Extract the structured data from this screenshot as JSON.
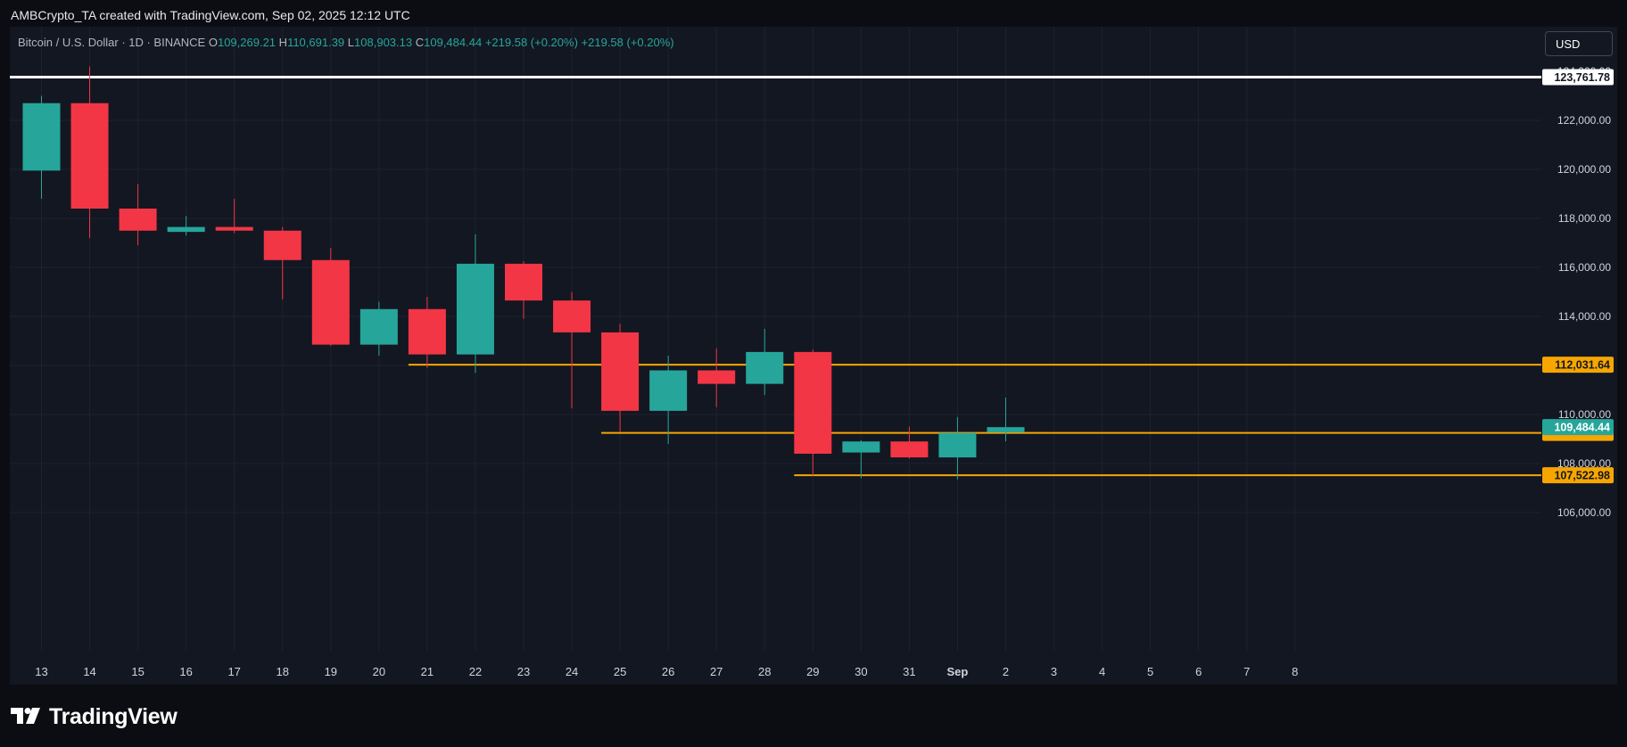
{
  "header": {
    "caption": "AMBCrypto_TA created with TradingView.com, Sep 02, 2025 12:12 UTC"
  },
  "symbol": {
    "name": "Bitcoin / U.S. Dollar · 1D · BINANCE",
    "open_label": "O",
    "open_value": "109,269.21",
    "high_label": "H",
    "high_value": "110,691.39",
    "low_label": "L",
    "low_value": "108,903.13",
    "close_label": "C",
    "close_value": "109,484.44",
    "change": "+219.58 (+0.20%)",
    "change_repeat": "+219.58 (+0.20%)"
  },
  "currency_button": "USD",
  "brand": {
    "name": "TradingView"
  },
  "colors": {
    "up": "#26a69a",
    "down": "#f23645",
    "level": "#f7a600",
    "resistance": "#ffffff",
    "background": "#131722",
    "grid": "#1e222d"
  },
  "chart_data": {
    "type": "candlestick",
    "title": "Bitcoin / U.S. Dollar · 1D · BINANCE",
    "x_ticks": [
      "13",
      "14",
      "15",
      "16",
      "17",
      "18",
      "19",
      "20",
      "21",
      "22",
      "23",
      "24",
      "25",
      "26",
      "27",
      "28",
      "29",
      "30",
      "31",
      "Sep",
      "2",
      "3",
      "4",
      "5",
      "6",
      "7",
      "8"
    ],
    "y_ticks": [
      106000,
      108000,
      110000,
      112000,
      114000,
      116000,
      118000,
      120000,
      122000
    ],
    "y_tick_labels": [
      "106,000.00",
      "108,000.00",
      "110,000.00",
      "112,000.00",
      "114,000.00",
      "116,000.00",
      "118,000.00",
      "120,000.00",
      "122,000.00"
    ],
    "ylim": [
      104000,
      125000
    ],
    "grid": true,
    "candles": [
      {
        "date": "13",
        "open": 119950,
        "high": 123000,
        "low": 118800,
        "close": 122700
      },
      {
        "date": "14",
        "open": 122700,
        "high": 124200,
        "low": 117200,
        "close": 118400
      },
      {
        "date": "15",
        "open": 118400,
        "high": 119400,
        "low": 116900,
        "close": 117500
      },
      {
        "date": "16",
        "open": 117450,
        "high": 118100,
        "low": 117300,
        "close": 117650
      },
      {
        "date": "17",
        "open": 117650,
        "high": 118800,
        "low": 117400,
        "close": 117500
      },
      {
        "date": "18",
        "open": 117500,
        "high": 117650,
        "low": 114700,
        "close": 116300
      },
      {
        "date": "19",
        "open": 116300,
        "high": 116800,
        "low": 112800,
        "close": 112850
      },
      {
        "date": "20",
        "open": 112850,
        "high": 114600,
        "low": 112400,
        "close": 114300
      },
      {
        "date": "21",
        "open": 114300,
        "high": 114800,
        "low": 111900,
        "close": 112450
      },
      {
        "date": "22",
        "open": 112450,
        "high": 117350,
        "low": 111700,
        "close": 116150
      },
      {
        "date": "23",
        "open": 116150,
        "high": 116250,
        "low": 113900,
        "close": 114650
      },
      {
        "date": "24",
        "open": 114650,
        "high": 115000,
        "low": 110250,
        "close": 113350
      },
      {
        "date": "25",
        "open": 113350,
        "high": 113700,
        "low": 109300,
        "close": 110150
      },
      {
        "date": "26",
        "open": 110150,
        "high": 112400,
        "low": 108800,
        "close": 111800
      },
      {
        "date": "27",
        "open": 111800,
        "high": 112700,
        "low": 110300,
        "close": 111250
      },
      {
        "date": "28",
        "open": 111250,
        "high": 113500,
        "low": 110800,
        "close": 112550
      },
      {
        "date": "29",
        "open": 112550,
        "high": 112650,
        "low": 107500,
        "close": 108400
      },
      {
        "date": "30",
        "open": 108450,
        "high": 108950,
        "low": 107400,
        "close": 108900
      },
      {
        "date": "31",
        "open": 108900,
        "high": 109500,
        "low": 108200,
        "close": 108250
      },
      {
        "date": "Sep",
        "open": 108250,
        "high": 109900,
        "low": 107350,
        "close": 109250
      },
      {
        "date": "2",
        "open": 109269.21,
        "high": 110691.39,
        "low": 108903.13,
        "close": 109484.44
      }
    ],
    "horizontal_levels": [
      {
        "value": 123761.78,
        "label": "123,761.78",
        "style": "resistance",
        "from": "start"
      },
      {
        "value": 112031.64,
        "label": "112,031.64",
        "style": "level",
        "from": "21"
      },
      {
        "value": 109250,
        "label": "",
        "style": "level",
        "from": "25"
      },
      {
        "value": 107522.98,
        "label": "107,522.98",
        "style": "level",
        "from": "29"
      }
    ],
    "last_price": {
      "value": 109484.44,
      "label": "109,484.44"
    },
    "hidden_top_label": "124,000.00"
  }
}
